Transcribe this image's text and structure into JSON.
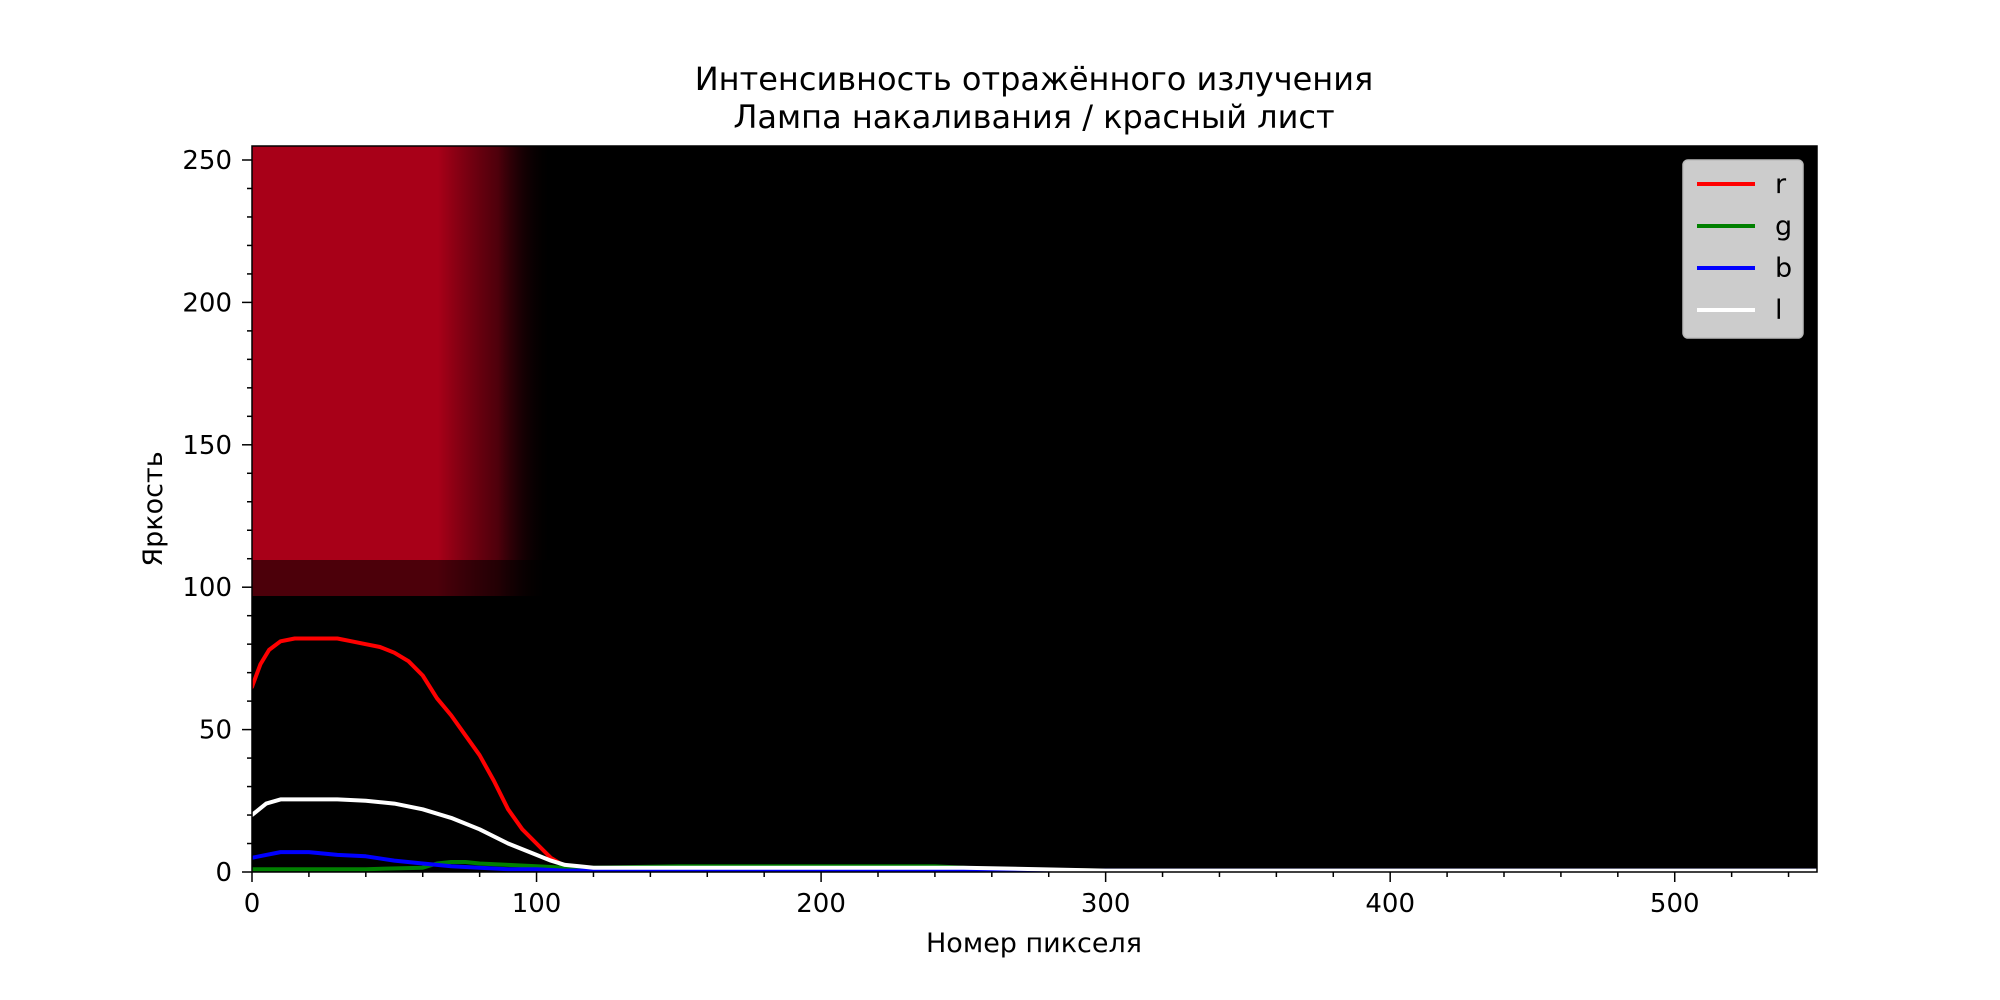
{
  "chart_data": {
    "type": "line",
    "title": "Интенсивность отражённого излучения",
    "subtitle": "Лампа накаливания / красный лист",
    "xlabel": "Номер пикселя",
    "ylabel": "Яркость",
    "xlim": [
      0,
      550
    ],
    "ylim": [
      0,
      255
    ],
    "xticks": [
      0,
      100,
      200,
      300,
      400,
      500
    ],
    "yticks": [
      0,
      50,
      100,
      150,
      200,
      250
    ],
    "grid": false,
    "legend_position": "top-right",
    "background_image": "red reflection strip: bright red for pixels 0–95 above brightness ~100, black elsewhere",
    "series": [
      {
        "name": "r",
        "color": "#ff0000",
        "x": [
          0,
          3,
          6,
          10,
          15,
          20,
          25,
          30,
          35,
          40,
          45,
          50,
          55,
          60,
          65,
          70,
          75,
          80,
          85,
          90,
          95,
          100,
          105,
          110,
          115,
          120,
          130,
          150,
          200,
          250,
          300,
          400,
          550
        ],
        "y": [
          65,
          73,
          78,
          81,
          82,
          82,
          82,
          82,
          81,
          80,
          79,
          77,
          74,
          69,
          61,
          55,
          48,
          41,
          32,
          22,
          15,
          10,
          5,
          2,
          1.5,
          1,
          1,
          1,
          1,
          1,
          0.5,
          0.5,
          0.5
        ]
      },
      {
        "name": "g",
        "color": "#008000",
        "x": [
          0,
          20,
          40,
          60,
          65,
          70,
          75,
          80,
          90,
          100,
          110,
          120,
          150,
          200,
          240,
          260,
          300,
          400,
          550
        ],
        "y": [
          1,
          1,
          1,
          1.5,
          3,
          3.5,
          3.5,
          3,
          2.5,
          2,
          1.5,
          1.5,
          2,
          2,
          2,
          1,
          0.5,
          0.5,
          0.5
        ]
      },
      {
        "name": "b",
        "color": "#0000ff",
        "x": [
          0,
          5,
          10,
          15,
          20,
          25,
          30,
          40,
          50,
          60,
          70,
          80,
          90,
          100,
          110,
          150,
          200,
          300,
          400,
          550
        ],
        "y": [
          5,
          6,
          7,
          7,
          7,
          6.5,
          6,
          5.5,
          4,
          3,
          2,
          1.5,
          1,
          1,
          0.5,
          0.5,
          0.5,
          0.5,
          0.5,
          0.5
        ]
      },
      {
        "name": "l",
        "color": "#ffffff",
        "x": [
          0,
          5,
          10,
          15,
          20,
          30,
          40,
          50,
          60,
          70,
          80,
          90,
          100,
          105,
          110,
          115,
          120,
          150,
          200,
          250,
          300,
          400,
          550
        ],
        "y": [
          20,
          24,
          25.5,
          25.5,
          25.5,
          25.5,
          25,
          24,
          22,
          19,
          15,
          10,
          6,
          4,
          2.5,
          2,
          1.5,
          1.5,
          1.5,
          1.5,
          0.5,
          0.5,
          0.5
        ]
      }
    ]
  }
}
